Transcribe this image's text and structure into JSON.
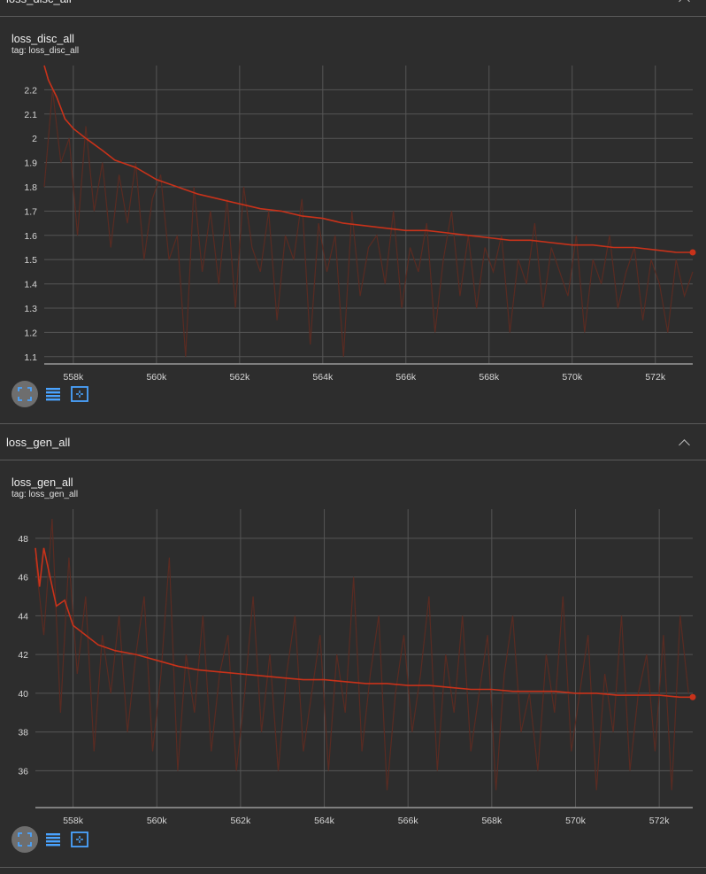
{
  "sections": [
    {
      "header": "loss_disc_all",
      "card": {
        "title": "loss_disc_all",
        "tag": "tag: loss_disc_all"
      }
    },
    {
      "header": "loss_gen_all",
      "card": {
        "title": "loss_gen_all",
        "tag": "tag: loss_gen_all"
      }
    }
  ],
  "toolbar": {
    "buttons": [
      {
        "icon": "fullscreen-icon"
      },
      {
        "icon": "y-axis-toggle-icon"
      },
      {
        "icon": "fit-domain-icon"
      }
    ]
  },
  "colors": {
    "background": "#2d2d2d",
    "smoothed_line": "#c8321a",
    "raw_line": "#5a2b22",
    "grid": "#555555",
    "accent_icon": "#4aa3ff"
  },
  "chart_data": [
    {
      "type": "line",
      "title": "loss_disc_all",
      "subtitle": "tag: loss_disc_all",
      "x_ticks": [
        558000,
        560000,
        562000,
        564000,
        566000,
        568000,
        570000,
        572000
      ],
      "x_tick_labels": [
        "558k",
        "560k",
        "562k",
        "564k",
        "566k",
        "568k",
        "570k",
        "572k"
      ],
      "y_ticks": [
        1.1,
        1.2,
        1.3,
        1.4,
        1.5,
        1.6,
        1.7,
        1.8,
        1.9,
        2,
        2.1,
        2.2
      ],
      "y_tick_labels": [
        "1.1",
        "1.2",
        "1.3",
        "1.4",
        "1.5",
        "1.6",
        "1.7",
        "1.8",
        "1.9",
        "2",
        "2.1",
        "2.2"
      ],
      "xlim": [
        557300,
        572900
      ],
      "ylim": [
        1.07,
        2.3
      ],
      "grid": true,
      "series": [
        {
          "role": "smoothed",
          "x": [
            557300,
            557400,
            557600,
            557800,
            558000,
            558300,
            558700,
            559000,
            559500,
            560000,
            560500,
            561000,
            561500,
            562000,
            562500,
            563000,
            563500,
            564000,
            564500,
            565000,
            565500,
            566000,
            566500,
            567000,
            567500,
            568000,
            568500,
            569000,
            569500,
            570000,
            570500,
            571000,
            571500,
            572000,
            572500,
            572900
          ],
          "y": [
            2.3,
            2.24,
            2.17,
            2.08,
            2.04,
            2.0,
            1.95,
            1.91,
            1.88,
            1.83,
            1.8,
            1.77,
            1.75,
            1.73,
            1.71,
            1.7,
            1.68,
            1.67,
            1.65,
            1.64,
            1.63,
            1.62,
            1.62,
            1.61,
            1.6,
            1.59,
            1.58,
            1.58,
            1.57,
            1.56,
            1.56,
            1.55,
            1.55,
            1.54,
            1.53,
            1.53
          ]
        },
        {
          "role": "raw",
          "x": [
            557300,
            557500,
            557700,
            557900,
            558100,
            558300,
            558500,
            558700,
            558900,
            559100,
            559300,
            559500,
            559700,
            559900,
            560100,
            560300,
            560500,
            560700,
            560900,
            561100,
            561300,
            561500,
            561700,
            561900,
            562100,
            562300,
            562500,
            562700,
            562900,
            563100,
            563300,
            563500,
            563700,
            563900,
            564100,
            564300,
            564500,
            564700,
            564900,
            565100,
            565300,
            565500,
            565700,
            565900,
            566100,
            566300,
            566500,
            566700,
            566900,
            567100,
            567300,
            567500,
            567700,
            567900,
            568100,
            568300,
            568500,
            568700,
            568900,
            569100,
            569300,
            569500,
            569700,
            569900,
            570100,
            570300,
            570500,
            570700,
            570900,
            571100,
            571300,
            571500,
            571700,
            571900,
            572100,
            572300,
            572500,
            572700,
            572900
          ],
          "y": [
            1.8,
            2.2,
            1.9,
            2.0,
            1.6,
            2.05,
            1.7,
            1.9,
            1.55,
            1.85,
            1.65,
            1.9,
            1.5,
            1.75,
            1.85,
            1.5,
            1.6,
            1.1,
            1.8,
            1.45,
            1.7,
            1.4,
            1.75,
            1.3,
            1.8,
            1.55,
            1.45,
            1.7,
            1.25,
            1.6,
            1.5,
            1.75,
            1.15,
            1.65,
            1.45,
            1.6,
            1.1,
            1.7,
            1.35,
            1.55,
            1.6,
            1.4,
            1.7,
            1.3,
            1.55,
            1.45,
            1.65,
            1.2,
            1.5,
            1.7,
            1.35,
            1.6,
            1.3,
            1.55,
            1.45,
            1.6,
            1.2,
            1.5,
            1.4,
            1.65,
            1.3,
            1.55,
            1.45,
            1.35,
            1.6,
            1.2,
            1.5,
            1.4,
            1.6,
            1.3,
            1.45,
            1.55,
            1.25,
            1.5,
            1.4,
            1.2,
            1.5,
            1.35,
            1.45
          ]
        }
      ]
    },
    {
      "type": "line",
      "title": "loss_gen_all",
      "subtitle": "tag: loss_gen_all",
      "x_ticks": [
        558000,
        560000,
        562000,
        564000,
        566000,
        568000,
        570000,
        572000
      ],
      "x_tick_labels": [
        "558k",
        "560k",
        "562k",
        "564k",
        "566k",
        "568k",
        "570k",
        "572k"
      ],
      "y_ticks": [
        36,
        38,
        40,
        42,
        44,
        46,
        48
      ],
      "y_tick_labels": [
        "36",
        "38",
        "40",
        "42",
        "44",
        "46",
        "48"
      ],
      "xlim": [
        557100,
        572800
      ],
      "ylim": [
        34.1,
        49.5
      ],
      "grid": true,
      "series": [
        {
          "role": "smoothed",
          "x": [
            557100,
            557200,
            557300,
            557450,
            557600,
            557800,
            558000,
            558300,
            558600,
            559000,
            559500,
            560000,
            560500,
            561000,
            561500,
            562000,
            562500,
            563000,
            563500,
            564000,
            564500,
            565000,
            565500,
            566000,
            566500,
            567000,
            567500,
            568000,
            568500,
            569000,
            569500,
            570000,
            570500,
            571000,
            571500,
            572000,
            572500,
            572800
          ],
          "y": [
            47.5,
            45.5,
            47.5,
            46.0,
            44.5,
            44.8,
            43.5,
            43.0,
            42.5,
            42.2,
            42.0,
            41.7,
            41.4,
            41.2,
            41.1,
            41.0,
            40.9,
            40.8,
            40.7,
            40.7,
            40.6,
            40.5,
            40.5,
            40.4,
            40.4,
            40.3,
            40.2,
            40.2,
            40.1,
            40.1,
            40.1,
            40.0,
            40.0,
            39.9,
            39.9,
            39.9,
            39.8,
            39.8
          ]
        },
        {
          "role": "raw",
          "x": [
            557100,
            557300,
            557500,
            557700,
            557900,
            558100,
            558300,
            558500,
            558700,
            558900,
            559100,
            559300,
            559500,
            559700,
            559900,
            560100,
            560300,
            560500,
            560700,
            560900,
            561100,
            561300,
            561500,
            561700,
            561900,
            562100,
            562300,
            562500,
            562700,
            562900,
            563100,
            563300,
            563500,
            563700,
            563900,
            564100,
            564300,
            564500,
            564700,
            564900,
            565100,
            565300,
            565500,
            565700,
            565900,
            566100,
            566300,
            566500,
            566700,
            566900,
            567100,
            567300,
            567500,
            567700,
            567900,
            568100,
            568300,
            568500,
            568700,
            568900,
            569100,
            569300,
            569500,
            569700,
            569900,
            570100,
            570300,
            570500,
            570700,
            570900,
            571100,
            571300,
            571500,
            571700,
            571900,
            572100,
            572300,
            572500,
            572700
          ],
          "y": [
            47,
            43,
            49,
            39,
            47,
            41,
            45,
            37,
            43,
            40,
            44,
            38,
            42,
            45,
            37,
            41,
            47,
            36,
            42,
            39,
            44,
            37,
            41,
            43,
            36,
            40,
            45,
            38,
            42,
            36,
            41,
            44,
            37,
            40,
            43,
            36,
            42,
            39,
            46,
            37,
            41,
            44,
            35,
            40,
            43,
            38,
            41,
            45,
            36,
            42,
            39,
            44,
            37,
            40,
            43,
            35,
            41,
            44,
            38,
            40,
            36,
            42,
            39,
            45,
            37,
            40,
            43,
            35,
            41,
            38,
            44,
            36,
            40,
            42,
            37,
            43,
            35,
            44,
            40
          ]
        }
      ]
    }
  ]
}
